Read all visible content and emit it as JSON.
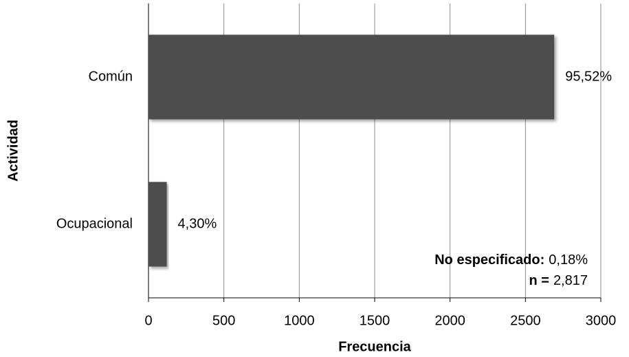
{
  "chart_data": {
    "type": "bar",
    "orientation": "horizontal",
    "x_label": "Frecuencia",
    "y_label": "Actividad",
    "categories": [
      "Común",
      "Ocupacional"
    ],
    "values": [
      2691,
      121
    ],
    "annotations": [
      "95,52%",
      "4,30%"
    ],
    "color": "#4d4d4d",
    "xlim": [
      0,
      3000
    ],
    "xticks": [
      0,
      500,
      1000,
      1500,
      2000,
      2500,
      3000
    ],
    "grid": true,
    "notes": [
      {
        "label": "No especificado:",
        "text": "0,18%"
      },
      {
        "label": "n =",
        "text": "2,817"
      }
    ]
  }
}
